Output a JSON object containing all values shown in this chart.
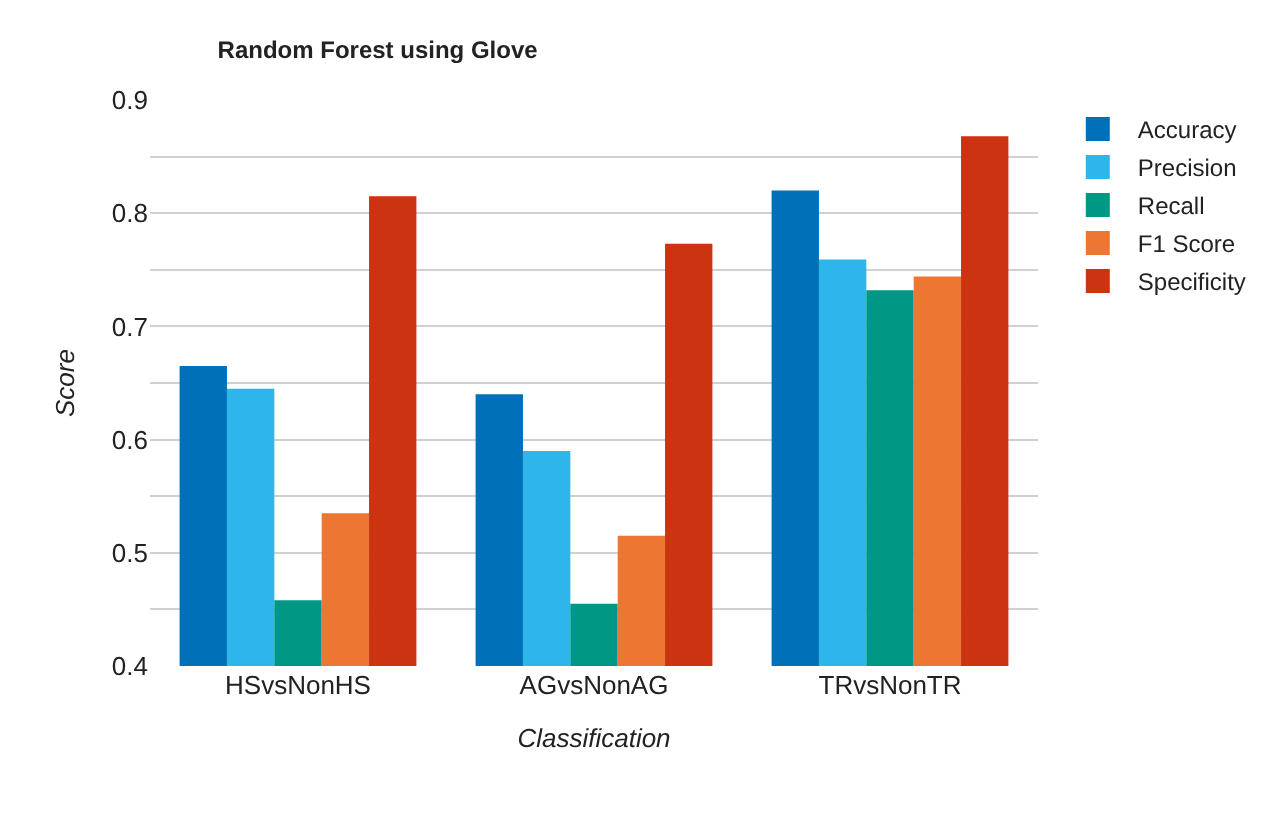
{
  "chart_data": {
    "type": "bar",
    "title": "Random Forest using Glove",
    "xlabel": "Classification",
    "ylabel": "Score",
    "categories": [
      "HSvsNonHS",
      "AGvsNonAG",
      "TRvsNonTR"
    ],
    "series": [
      {
        "name": "Accuracy",
        "color": "#0070b8",
        "values": [
          0.665,
          0.64,
          0.82
        ]
      },
      {
        "name": "Precision",
        "color": "#2eb6ea",
        "values": [
          0.645,
          0.59,
          0.759
        ]
      },
      {
        "name": "Recall",
        "color": "#009784",
        "values": [
          0.458,
          0.455,
          0.732
        ]
      },
      {
        "name": "F1 Score",
        "color": "#ee7633",
        "values": [
          0.535,
          0.515,
          0.744
        ]
      },
      {
        "name": "Specificity",
        "color": "#cc3311",
        "values": [
          0.815,
          0.773,
          0.868
        ]
      }
    ],
    "ylim": [
      0.4,
      0.9
    ],
    "yticks": [
      0.4,
      {
        "value": 0.45,
        "label": null
      },
      0.5,
      {
        "value": 0.55,
        "label": null
      },
      0.6,
      {
        "value": 0.65,
        "label": null
      },
      0.7,
      {
        "value": 0.75,
        "label": null
      },
      0.8,
      {
        "value": 0.85,
        "label": null
      },
      0.9
    ],
    "grid": "y",
    "legend": "top right"
  }
}
